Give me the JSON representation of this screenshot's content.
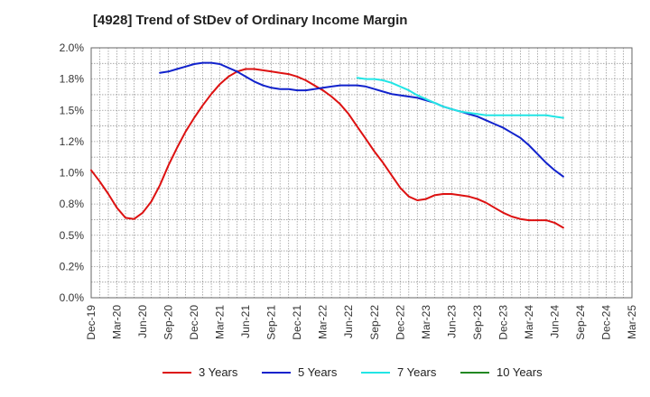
{
  "chart_data": {
    "type": "line",
    "title": "[4928]  Trend of StDev of Ordinary Income Margin",
    "xlabel": "",
    "ylabel": "",
    "ylim": [
      0,
      2.0
    ],
    "y_ticks": [
      "0.0%",
      "0.2%",
      "0.5%",
      "0.8%",
      "1.0%",
      "1.2%",
      "1.5%",
      "1.8%",
      "2.0%"
    ],
    "x_ticks": [
      "Dec-19",
      "Mar-20",
      "Jun-20",
      "Sep-20",
      "Dec-20",
      "Mar-21",
      "Jun-21",
      "Sep-21",
      "Dec-21",
      "Mar-22",
      "Jun-22",
      "Sep-22",
      "Dec-22",
      "Mar-23",
      "Jun-23",
      "Sep-23",
      "Dec-23",
      "Mar-24",
      "Jun-24",
      "Sep-24",
      "Dec-24",
      "Mar-25"
    ],
    "grid": true,
    "legend_position": "bottom",
    "series": [
      {
        "name": "3 Years",
        "color": "#dd1111",
        "values": [
          1.02,
          0.93,
          0.83,
          0.72,
          0.64,
          0.63,
          0.68,
          0.77,
          0.9,
          1.06,
          1.2,
          1.33,
          1.44,
          1.54,
          1.63,
          1.71,
          1.77,
          1.81,
          1.83,
          1.83,
          1.82,
          1.81,
          1.8,
          1.79,
          1.77,
          1.74,
          1.7,
          1.66,
          1.61,
          1.55,
          1.47,
          1.37,
          1.27,
          1.17,
          1.08,
          0.98,
          0.88,
          0.81,
          0.78,
          0.79,
          0.82,
          0.83,
          0.83,
          0.82,
          0.81,
          0.79,
          0.76,
          0.72,
          0.68,
          0.65,
          0.63,
          0.62,
          0.62,
          0.62,
          0.6,
          0.56
        ]
      },
      {
        "name": "5 Years",
        "color": "#1122cc",
        "values": [
          null,
          null,
          null,
          null,
          null,
          null,
          null,
          null,
          1.8,
          1.81,
          1.83,
          1.85,
          1.87,
          1.88,
          1.88,
          1.87,
          1.84,
          1.81,
          1.77,
          1.73,
          1.7,
          1.68,
          1.67,
          1.67,
          1.66,
          1.66,
          1.67,
          1.68,
          1.69,
          1.7,
          1.7,
          1.7,
          1.69,
          1.67,
          1.65,
          1.63,
          1.62,
          1.61,
          1.6,
          1.58,
          1.56,
          1.53,
          1.51,
          1.49,
          1.47,
          1.45,
          1.42,
          1.39,
          1.36,
          1.32,
          1.28,
          1.22,
          1.15,
          1.08,
          1.02,
          0.97
        ]
      },
      {
        "name": "7 Years",
        "color": "#22e5e5",
        "values": [
          null,
          null,
          null,
          null,
          null,
          null,
          null,
          null,
          null,
          null,
          null,
          null,
          null,
          null,
          null,
          null,
          null,
          null,
          null,
          null,
          null,
          null,
          null,
          null,
          null,
          null,
          null,
          null,
          null,
          null,
          null,
          1.76,
          1.75,
          1.75,
          1.74,
          1.72,
          1.69,
          1.66,
          1.62,
          1.59,
          1.56,
          1.53,
          1.51,
          1.49,
          1.48,
          1.47,
          1.46,
          1.46,
          1.46,
          1.46,
          1.46,
          1.46,
          1.46,
          1.46,
          1.45,
          1.44
        ]
      },
      {
        "name": "10 Years",
        "color": "#228822",
        "values": []
      }
    ]
  }
}
